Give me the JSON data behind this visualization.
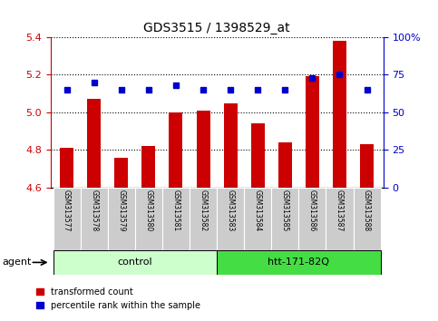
{
  "title": "GDS3515 / 1398529_at",
  "samples": [
    "GSM313577",
    "GSM313578",
    "GSM313579",
    "GSM313580",
    "GSM313581",
    "GSM313582",
    "GSM313583",
    "GSM313584",
    "GSM313585",
    "GSM313586",
    "GSM313587",
    "GSM313588"
  ],
  "bar_values": [
    4.81,
    5.07,
    4.76,
    4.82,
    5.0,
    5.01,
    5.05,
    4.94,
    4.84,
    5.19,
    5.38,
    4.83
  ],
  "dot_values": [
    65,
    70,
    65,
    65,
    68,
    65,
    65,
    65,
    65,
    73,
    75,
    65
  ],
  "ylim_left": [
    4.6,
    5.4
  ],
  "ylim_right": [
    0,
    100
  ],
  "yticks_left": [
    4.6,
    4.8,
    5.0,
    5.2,
    5.4
  ],
  "yticks_right": [
    0,
    25,
    50,
    75,
    100
  ],
  "ytick_labels_right": [
    "0",
    "25",
    "50",
    "75",
    "100%"
  ],
  "bar_color": "#cc0000",
  "dot_color": "#0000cc",
  "bar_baseline": 4.6,
  "groups": [
    {
      "label": "control",
      "start": 0,
      "end": 6,
      "color": "#ccffcc"
    },
    {
      "label": "htt-171-82Q",
      "start": 6,
      "end": 12,
      "color": "#44dd44"
    }
  ],
  "agent_label": "agent",
  "legend_bar_label": "transformed count",
  "legend_dot_label": "percentile rank within the sample",
  "tick_label_color_left": "#cc0000",
  "tick_label_color_right": "#0000cc",
  "sample_area_color": "#cccccc",
  "background_color": "#ffffff"
}
